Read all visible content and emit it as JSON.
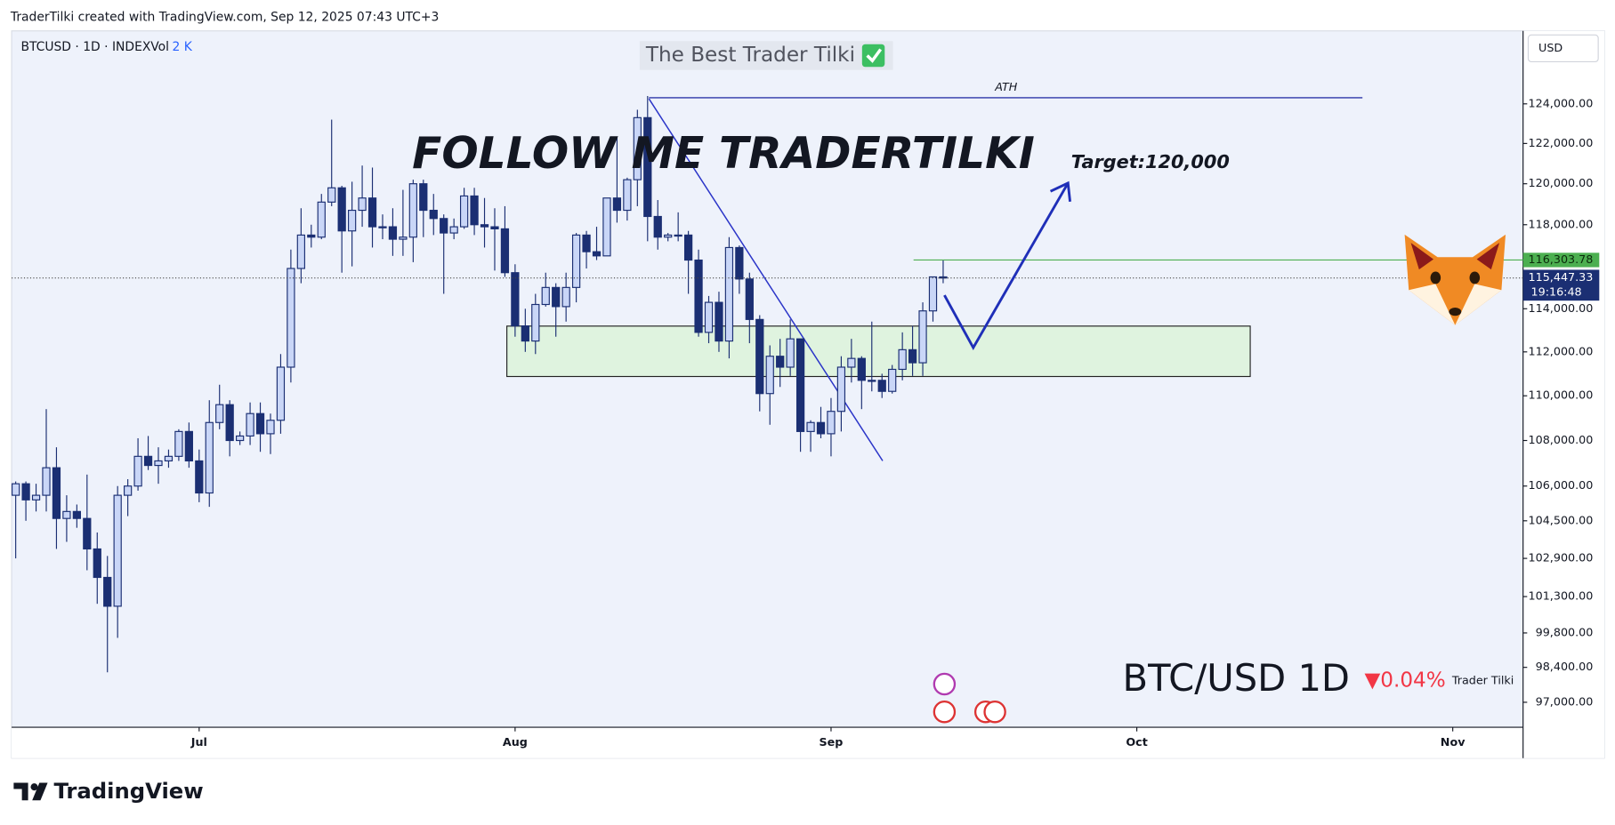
{
  "header": "TraderTilki created with TradingView.com, Sep 12, 2025 07:43 UTC+3",
  "symbol": "BTCUSD · 1D · INDEX",
  "volume": "Vol",
  "volume_value": "2 K",
  "brand": "TradingView",
  "chart_data": {
    "type": "candlestick",
    "log_scale": true,
    "up_color": "#c9d6f7",
    "down_color": "#1b2f73",
    "currency": "USD",
    "xlim": [
      -0.4,
      147.9
    ],
    "xticks": [
      {
        "value": 18,
        "label": "Jul"
      },
      {
        "value": 49,
        "label": "Aug"
      },
      {
        "value": 80,
        "label": "Sep"
      },
      {
        "value": 110,
        "label": "Oct"
      },
      {
        "value": 141,
        "label": "Nov"
      }
    ],
    "ylim": [
      96010,
      127770
    ],
    "yticks": [
      {
        "value": 124000,
        "label": "124,000.00"
      },
      {
        "value": 122000,
        "label": "122,000.00"
      },
      {
        "value": 120000,
        "label": "120,000.00"
      },
      {
        "value": 118000,
        "label": "118,000.00"
      },
      {
        "value": 114000,
        "label": "114,000.00"
      },
      {
        "value": 112000,
        "label": "112,000.00"
      },
      {
        "value": 110000,
        "label": "110,000.00"
      },
      {
        "value": 108000,
        "label": "108,000.00"
      },
      {
        "value": 106000,
        "label": "106,000.00"
      },
      {
        "value": 104500,
        "label": "104,500.00"
      },
      {
        "value": 102900,
        "label": "102,900.00"
      },
      {
        "value": 101300,
        "label": "101,300.00"
      },
      {
        "value": 99800,
        "label": "99,800.00"
      },
      {
        "value": 98400,
        "label": "98,400.00"
      },
      {
        "value": 97000,
        "label": "97,000.00"
      }
    ],
    "open": [
      105600,
      106100,
      105400,
      105600,
      106800,
      104600,
      104900,
      104600,
      103300,
      102100,
      100900,
      105600,
      106000,
      107300,
      106900,
      107100,
      107300,
      108400,
      107100,
      105700,
      108800,
      109600,
      108000,
      108200,
      109200,
      108300,
      108900,
      111300,
      115900,
      117500,
      117400,
      119100,
      119800,
      117700,
      118700,
      119300,
      117900,
      117900,
      117300,
      117400,
      120000,
      118700,
      118300,
      117600,
      117900,
      119400,
      118000,
      117900,
      117800,
      115700,
      113200,
      112500,
      114200,
      115000,
      114100,
      115000,
      117500,
      116700,
      116500,
      119300,
      118700,
      120200,
      123300,
      118400,
      117400,
      117500,
      117500,
      116300,
      112900,
      114300,
      112500,
      116900,
      115400,
      113500,
      110100,
      111800,
      111300,
      112600,
      108400,
      108800,
      108300,
      109300,
      111300,
      111700,
      110700,
      110700,
      110200,
      111200,
      112100,
      111500,
      113900,
      115500
    ],
    "high": [
      106200,
      106200,
      106100,
      109400,
      107700,
      105600,
      105200,
      106500,
      104000,
      103000,
      106000,
      106300,
      108100,
      108200,
      107700,
      107600,
      108500,
      108800,
      107600,
      109800,
      110500,
      109800,
      108400,
      109700,
      109700,
      109200,
      111900,
      116800,
      118800,
      118000,
      119500,
      123200,
      119900,
      120100,
      120900,
      120800,
      118500,
      118800,
      119700,
      120200,
      120200,
      119500,
      118500,
      118300,
      119800,
      119800,
      119300,
      118800,
      118900,
      116100,
      114000,
      114700,
      115700,
      115200,
      115700,
      117600,
      117700,
      117900,
      119300,
      122300,
      120300,
      123700,
      124400,
      119200,
      117600,
      118600,
      117700,
      116800,
      114600,
      114800,
      117400,
      117000,
      115700,
      113700,
      112300,
      112600,
      113500,
      112600,
      108900,
      109500,
      109900,
      111800,
      112600,
      111800,
      113400,
      111000,
      111400,
      112900,
      113200,
      114300,
      115500,
      116300
    ],
    "low": [
      102900,
      104500,
      104900,
      104900,
      103300,
      103600,
      104200,
      102400,
      101000,
      98200,
      99600,
      104700,
      105800,
      106700,
      106100,
      106800,
      107100,
      106800,
      105300,
      105100,
      108500,
      107300,
      107800,
      107800,
      107500,
      107400,
      108300,
      110600,
      115200,
      116900,
      117300,
      118900,
      115700,
      116000,
      117900,
      116900,
      117300,
      116500,
      116500,
      116200,
      117400,
      117500,
      114700,
      117300,
      117800,
      117500,
      116900,
      115800,
      115500,
      112700,
      112000,
      111900,
      114100,
      112700,
      113400,
      114300,
      115900,
      116300,
      116500,
      118100,
      118200,
      118900,
      117200,
      116800,
      117200,
      117200,
      114700,
      112700,
      112400,
      112000,
      111700,
      114700,
      112400,
      109300,
      108700,
      110400,
      110900,
      107500,
      107500,
      108100,
      107300,
      108400,
      110600,
      109400,
      110200,
      109900,
      110100,
      110700,
      110900,
      110900,
      113400,
      115200
    ],
    "close": [
      106100,
      105400,
      105600,
      106800,
      104600,
      104900,
      104600,
      103300,
      102100,
      100900,
      105600,
      106000,
      107300,
      106900,
      107100,
      107300,
      108400,
      107100,
      105700,
      108800,
      109600,
      108000,
      108200,
      109200,
      108300,
      108900,
      111300,
      115900,
      117500,
      117400,
      119100,
      119800,
      117700,
      118700,
      119300,
      117900,
      117900,
      117300,
      117400,
      120000,
      118700,
      118300,
      117600,
      117900,
      119400,
      118000,
      117900,
      117800,
      115700,
      113200,
      112500,
      114200,
      115000,
      114100,
      115000,
      117500,
      116700,
      116500,
      119300,
      118700,
      120200,
      123300,
      118400,
      117400,
      117500,
      117500,
      116300,
      112900,
      114300,
      112500,
      116900,
      115400,
      113500,
      110100,
      111800,
      111300,
      112600,
      108400,
      108800,
      108300,
      109300,
      111300,
      111700,
      110700,
      110700,
      110200,
      111200,
      112100,
      111500,
      113900,
      115500,
      115447.33
    ],
    "price_tags": {
      "high": {
        "value": 116303.78,
        "label": "116,303.78"
      },
      "last": {
        "value": 115447.33,
        "label": "115,447.33"
      },
      "countdown": "19:16:48"
    },
    "annotations": {
      "watermark": "The Best Trader Tilki",
      "headline": "FOLLOW ME TRADERTILKI",
      "ath": "ATH",
      "target": "Target:120,000"
    },
    "pair_label": "BTC/USD 1D",
    "change": "▼0.04%",
    "author": "Trader Tilki"
  }
}
